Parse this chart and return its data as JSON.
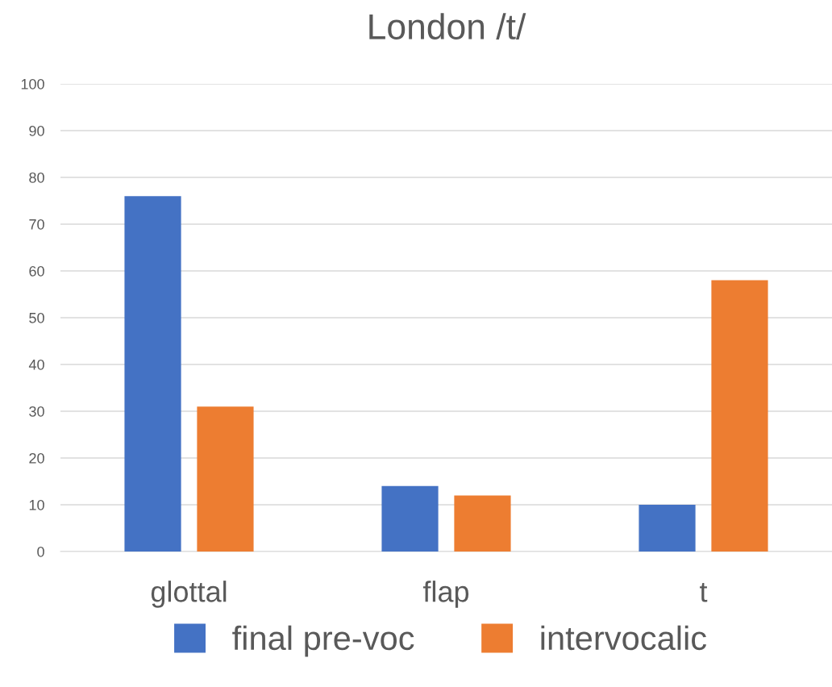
{
  "chart_data": {
    "type": "bar",
    "title": "London /t/",
    "categories": [
      "glottal",
      "flap",
      "t"
    ],
    "series": [
      {
        "name": "final pre-voc",
        "color": "#4472c4",
        "values": [
          76,
          14,
          10
        ]
      },
      {
        "name": "intervocalic",
        "color": "#ed7d31",
        "values": [
          31,
          12,
          58
        ]
      }
    ],
    "ylim": [
      0,
      100
    ],
    "yticks": [
      0,
      10,
      20,
      30,
      40,
      50,
      60,
      70,
      80,
      90,
      100
    ],
    "grid": "y",
    "legend": "bottom"
  }
}
